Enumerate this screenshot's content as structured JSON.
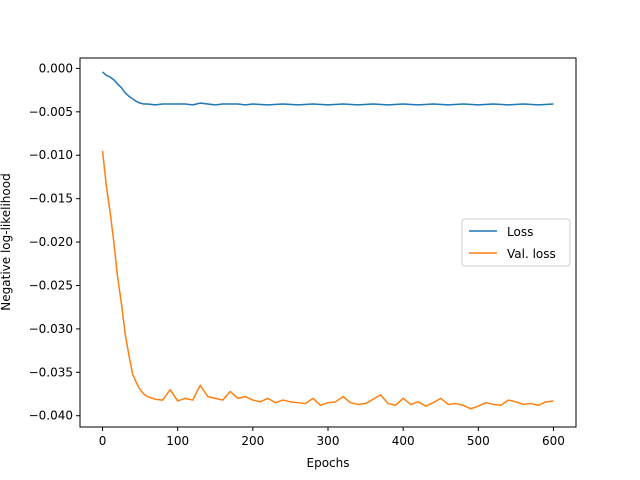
{
  "chart_data": {
    "type": "line",
    "title": "",
    "xlabel": "Epochs",
    "ylabel": "Negative log-likelihood",
    "xlim": [
      -30,
      630
    ],
    "ylim": [
      -0.0413,
      0.0012
    ],
    "x_ticks": [
      0,
      100,
      200,
      300,
      400,
      500,
      600
    ],
    "x_tick_labels": [
      "0",
      "100",
      "200",
      "300",
      "400",
      "500",
      "600"
    ],
    "y_ticks": [
      0.0,
      -0.005,
      -0.01,
      -0.015,
      -0.02,
      -0.025,
      -0.03,
      -0.035,
      -0.04
    ],
    "y_tick_labels": [
      "0.000",
      "−0.005",
      "−0.010",
      "−0.015",
      "−0.020",
      "−0.025",
      "−0.030",
      "−0.035",
      "−0.040"
    ],
    "grid": false,
    "legend_position": "center-right",
    "series": [
      {
        "name": "Loss",
        "color": "#1f77b4",
        "x": [
          0,
          5,
          10,
          15,
          20,
          25,
          30,
          35,
          40,
          45,
          50,
          55,
          60,
          70,
          80,
          90,
          100,
          110,
          120,
          130,
          140,
          150,
          160,
          170,
          180,
          190,
          200,
          220,
          240,
          260,
          280,
          300,
          320,
          340,
          360,
          380,
          400,
          420,
          440,
          460,
          480,
          500,
          520,
          540,
          560,
          580,
          600
        ],
        "y": [
          -0.0004,
          -0.0008,
          -0.001,
          -0.0013,
          -0.0018,
          -0.0022,
          -0.0028,
          -0.0032,
          -0.0035,
          -0.0038,
          -0.004,
          -0.0041,
          -0.0041,
          -0.0042,
          -0.0041,
          -0.0041,
          -0.0041,
          -0.0041,
          -0.0042,
          -0.004,
          -0.0041,
          -0.0042,
          -0.0041,
          -0.0041,
          -0.0041,
          -0.0042,
          -0.0041,
          -0.0042,
          -0.0041,
          -0.0042,
          -0.0041,
          -0.0042,
          -0.0041,
          -0.0042,
          -0.0041,
          -0.0042,
          -0.0041,
          -0.0042,
          -0.0041,
          -0.0042,
          -0.0041,
          -0.0042,
          -0.0041,
          -0.0042,
          -0.0041,
          -0.0042,
          -0.0041
        ]
      },
      {
        "name": "Val. loss",
        "color": "#ff7f0e",
        "x": [
          0,
          5,
          10,
          15,
          20,
          25,
          30,
          35,
          40,
          45,
          50,
          55,
          60,
          70,
          80,
          90,
          100,
          110,
          120,
          130,
          140,
          150,
          160,
          170,
          180,
          190,
          200,
          210,
          220,
          230,
          240,
          250,
          260,
          270,
          280,
          290,
          300,
          310,
          320,
          330,
          340,
          350,
          360,
          370,
          380,
          390,
          400,
          410,
          420,
          430,
          440,
          450,
          460,
          470,
          480,
          490,
          500,
          510,
          520,
          530,
          540,
          550,
          560,
          570,
          580,
          590,
          600
        ],
        "y": [
          -0.0095,
          -0.0135,
          -0.0165,
          -0.02,
          -0.024,
          -0.027,
          -0.0305,
          -0.033,
          -0.0352,
          -0.0362,
          -0.037,
          -0.0375,
          -0.0378,
          -0.0381,
          -0.0382,
          -0.037,
          -0.0383,
          -0.038,
          -0.0382,
          -0.0365,
          -0.0378,
          -0.038,
          -0.0382,
          -0.0372,
          -0.038,
          -0.0378,
          -0.0382,
          -0.0384,
          -0.038,
          -0.0385,
          -0.0382,
          -0.0384,
          -0.0385,
          -0.0386,
          -0.038,
          -0.0388,
          -0.0385,
          -0.0384,
          -0.0378,
          -0.0385,
          -0.0387,
          -0.0386,
          -0.0381,
          -0.0376,
          -0.0386,
          -0.0388,
          -0.038,
          -0.0387,
          -0.0384,
          -0.0389,
          -0.0385,
          -0.038,
          -0.0387,
          -0.0386,
          -0.0388,
          -0.0392,
          -0.0389,
          -0.0385,
          -0.0387,
          -0.0388,
          -0.0382,
          -0.0384,
          -0.0387,
          -0.0386,
          -0.0388,
          -0.0384,
          -0.0383
        ]
      }
    ]
  }
}
